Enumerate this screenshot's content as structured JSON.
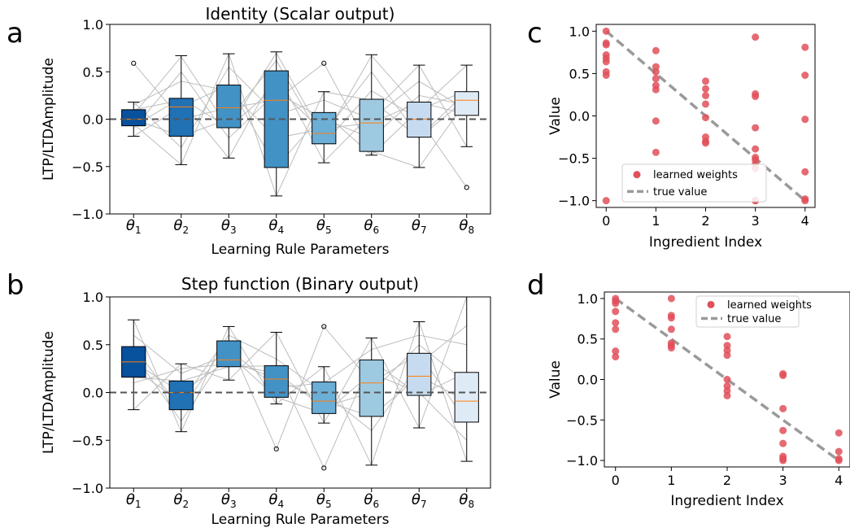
{
  "colors": {
    "box_fills": [
      "#08519c",
      "#2171b5",
      "#4292c6",
      "#4292c6",
      "#6baed6",
      "#9ecae1",
      "#c6dbef",
      "#deebf7"
    ],
    "median": "#ff7f0e",
    "traj_line": "#bdbdbd",
    "zero_line": "#555555",
    "points": "#e0505a",
    "true_line": "#9a9a9a"
  },
  "chart_data": [
    {
      "panel": "a",
      "type": "box",
      "title": "Identity (Scalar output)",
      "xlabel": "Learning Rule Parameters",
      "ylabel": "LTP/LTDAmplitude",
      "ylim": [
        -1.0,
        1.0
      ],
      "yticks": [
        "−1.0",
        "−0.5",
        "0.0",
        "0.5",
        "1.0"
      ],
      "ytick_values": [
        -1.0,
        -0.5,
        0.0,
        0.5,
        1.0
      ],
      "categories": [
        "1",
        "2",
        "3",
        "4",
        "5",
        "6",
        "7",
        "8"
      ],
      "category_symbol": "θ",
      "reference_line": 0.0,
      "boxes": [
        {
          "whislo": -0.18,
          "q1": -0.07,
          "med": 0.0,
          "q3": 0.1,
          "whishi": 0.18,
          "fliers": [
            0.59
          ]
        },
        {
          "whislo": -0.48,
          "q1": -0.18,
          "med": 0.13,
          "q3": 0.22,
          "whishi": 0.67,
          "fliers": []
        },
        {
          "whislo": -0.41,
          "q1": -0.09,
          "med": 0.12,
          "q3": 0.36,
          "whishi": 0.69,
          "fliers": []
        },
        {
          "whislo": -0.81,
          "q1": -0.51,
          "med": 0.2,
          "q3": 0.51,
          "whishi": 0.71,
          "fliers": []
        },
        {
          "whislo": -0.46,
          "q1": -0.26,
          "med": -0.15,
          "q3": 0.07,
          "whishi": 0.29,
          "fliers": [
            0.59
          ]
        },
        {
          "whislo": -0.38,
          "q1": -0.34,
          "med": -0.04,
          "q3": 0.21,
          "whishi": 0.68,
          "fliers": []
        },
        {
          "whislo": -0.51,
          "q1": -0.19,
          "med": 0.0,
          "q3": 0.18,
          "whishi": 0.57,
          "fliers": []
        },
        {
          "whislo": -0.29,
          "q1": 0.04,
          "med": 0.2,
          "q3": 0.29,
          "whishi": 0.57,
          "fliers": [
            -0.72
          ]
        }
      ],
      "trajectories": [
        [
          0.05,
          0.66,
          -0.1,
          0.7,
          -0.2,
          0.67,
          0.1,
          0.3
        ],
        [
          -0.05,
          -0.48,
          0.69,
          -0.81,
          0.29,
          0.2,
          -0.2,
          0.22
        ],
        [
          0.1,
          0.2,
          -0.41,
          0.5,
          -0.45,
          0.06,
          0.57,
          -0.29
        ],
        [
          -0.18,
          0.13,
          0.36,
          -0.51,
          0.07,
          -0.38,
          0.1,
          0.57
        ],
        [
          0.59,
          0.0,
          0.12,
          0.2,
          0.59,
          -0.34,
          -0.51,
          0.2
        ],
        [
          0.0,
          -0.18,
          0.0,
          0.62,
          -0.26,
          0.3,
          0.0,
          -0.72
        ],
        [
          0.15,
          0.4,
          0.3,
          -0.2,
          -0.1,
          -0.04,
          0.18,
          0.05
        ],
        [
          -0.07,
          0.22,
          -0.09,
          0.35,
          -0.15,
          0.5,
          -0.19,
          0.29
        ],
        [
          0.18,
          -0.3,
          0.55,
          0.05,
          0.2,
          0.0,
          0.4,
          0.1
        ],
        [
          -0.1,
          0.5,
          -0.2,
          0.28,
          0.0,
          -0.2,
          0.25,
          0.15
        ]
      ]
    },
    {
      "panel": "b",
      "type": "box",
      "title": "Step function (Binary output)",
      "xlabel": "Learning Rule Parameters",
      "ylabel": "LTP/LTDAmplitude",
      "ylim": [
        -1.0,
        1.0
      ],
      "yticks": [
        "−1.0",
        "−0.5",
        "0.0",
        "0.5",
        "1.0"
      ],
      "ytick_values": [
        -1.0,
        -0.5,
        0.0,
        0.5,
        1.0
      ],
      "categories": [
        "1",
        "2",
        "3",
        "4",
        "5",
        "6",
        "7",
        "8"
      ],
      "category_symbol": "θ",
      "reference_line": 0.0,
      "boxes": [
        {
          "whislo": -0.18,
          "q1": 0.16,
          "med": 0.32,
          "q3": 0.48,
          "whishi": 0.76,
          "fliers": []
        },
        {
          "whislo": -0.41,
          "q1": -0.18,
          "med": 0.0,
          "q3": 0.12,
          "whishi": 0.3,
          "fliers": []
        },
        {
          "whislo": 0.13,
          "q1": 0.27,
          "med": 0.34,
          "q3": 0.54,
          "whishi": 0.69,
          "fliers": []
        },
        {
          "whislo": -0.12,
          "q1": -0.05,
          "med": 0.14,
          "q3": 0.28,
          "whishi": 0.63,
          "fliers": [
            -0.59
          ]
        },
        {
          "whislo": -0.32,
          "q1": -0.22,
          "med": -0.09,
          "q3": 0.11,
          "whishi": 0.27,
          "fliers": [
            0.69,
            -0.79
          ]
        },
        {
          "whislo": -0.76,
          "q1": -0.25,
          "med": 0.1,
          "q3": 0.34,
          "whishi": 0.57,
          "fliers": []
        },
        {
          "whislo": -0.37,
          "q1": -0.03,
          "med": 0.17,
          "q3": 0.41,
          "whishi": 0.74,
          "fliers": []
        },
        {
          "whislo": -0.72,
          "q1": -0.31,
          "med": -0.09,
          "q3": 0.21,
          "whishi": 1.0,
          "fliers": []
        }
      ],
      "trajectories": [
        [
          0.76,
          -0.41,
          0.69,
          -0.12,
          0.27,
          -0.76,
          0.74,
          -0.72
        ],
        [
          -0.18,
          0.3,
          0.13,
          0.63,
          -0.32,
          0.57,
          -0.37,
          1.0
        ],
        [
          0.48,
          -0.18,
          0.54,
          -0.59,
          0.69,
          0.1,
          0.41,
          -0.31
        ],
        [
          0.16,
          0.12,
          0.27,
          0.28,
          -0.79,
          0.34,
          -0.03,
          0.21
        ],
        [
          0.32,
          0.0,
          0.34,
          0.14,
          -0.09,
          -0.25,
          0.17,
          -0.09
        ],
        [
          0.4,
          -0.3,
          0.45,
          0.05,
          0.1,
          0.45,
          0.6,
          0.5
        ],
        [
          0.6,
          0.2,
          0.4,
          -0.05,
          -0.22,
          0.2,
          0.0,
          -0.5
        ],
        [
          0.25,
          -0.1,
          0.6,
          0.35,
          0.0,
          -0.4,
          0.3,
          0.7
        ],
        [
          0.1,
          0.25,
          0.3,
          0.2,
          -0.15,
          0.0,
          0.5,
          0.1
        ]
      ]
    },
    {
      "panel": "c",
      "type": "scatter",
      "xlabel": "Ingredient Index",
      "ylabel": "Value",
      "xlim": [
        -0.2,
        4.2
      ],
      "ylim": [
        -1.08,
        1.08
      ],
      "xticks": [
        "0",
        "1",
        "2",
        "3",
        "4"
      ],
      "xtick_values": [
        0,
        1,
        2,
        3,
        4
      ],
      "yticks": [
        "−1.0",
        "−0.5",
        "0.0",
        "0.5",
        "1.0"
      ],
      "ytick_values": [
        -1.0,
        -0.5,
        0.0,
        0.5,
        1.0
      ],
      "legend": {
        "position": "lower-left",
        "entries": [
          "learned weights",
          "true value"
        ]
      },
      "true_value": {
        "x": [
          0,
          4
        ],
        "y": [
          1.0,
          -1.0
        ]
      },
      "points": [
        [
          0,
          1.0
        ],
        [
          0,
          0.86
        ],
        [
          0,
          0.84
        ],
        [
          0,
          0.72
        ],
        [
          0,
          0.68
        ],
        [
          0,
          0.64
        ],
        [
          0,
          0.52
        ],
        [
          0,
          0.48
        ],
        [
          0,
          -1.0
        ],
        [
          1,
          0.77
        ],
        [
          1,
          0.58
        ],
        [
          1,
          0.52
        ],
        [
          1,
          0.44
        ],
        [
          1,
          0.36
        ],
        [
          1,
          0.31
        ],
        [
          1,
          -0.06
        ],
        [
          1,
          -0.43
        ],
        [
          2,
          0.41
        ],
        [
          2,
          0.32
        ],
        [
          2,
          0.24
        ],
        [
          2,
          0.14
        ],
        [
          2,
          -0.02
        ],
        [
          2,
          -0.25
        ],
        [
          2,
          -0.3
        ],
        [
          2,
          -0.32
        ],
        [
          3,
          0.93
        ],
        [
          3,
          0.26
        ],
        [
          3,
          0.23
        ],
        [
          3,
          -0.14
        ],
        [
          3,
          -0.39
        ],
        [
          3,
          -0.49
        ],
        [
          3,
          -0.52
        ],
        [
          3,
          -0.57
        ],
        [
          3,
          -0.62
        ],
        [
          3,
          -1.0
        ],
        [
          3,
          -1.0
        ],
        [
          4,
          0.81
        ],
        [
          4,
          0.48
        ],
        [
          4,
          -0.04
        ],
        [
          4,
          -0.66
        ],
        [
          4,
          -0.98
        ],
        [
          4,
          -1.0
        ]
      ]
    },
    {
      "panel": "d",
      "type": "scatter",
      "xlabel": "Ingredient Index",
      "ylabel": "Value",
      "xlim": [
        -0.2,
        4.2
      ],
      "ylim": [
        -1.08,
        1.08
      ],
      "xticks": [
        "0",
        "1",
        "2",
        "3",
        "4"
      ],
      "xtick_values": [
        0,
        1,
        2,
        3,
        4
      ],
      "yticks": [
        "−1.0",
        "−0.5",
        "0.0",
        "0.5",
        "1.0"
      ],
      "ytick_values": [
        -1.0,
        -0.5,
        0.0,
        0.5,
        1.0
      ],
      "legend": {
        "position": "upper-right",
        "entries": [
          "learned weights",
          "true value"
        ]
      },
      "true_value": {
        "x": [
          0,
          4
        ],
        "y": [
          1.0,
          -1.0
        ]
      },
      "points": [
        [
          0,
          1.0
        ],
        [
          0,
          0.97
        ],
        [
          0,
          0.94
        ],
        [
          0,
          0.84
        ],
        [
          0,
          0.7
        ],
        [
          0,
          0.62
        ],
        [
          0,
          0.35
        ],
        [
          0,
          0.28
        ],
        [
          1,
          1.0
        ],
        [
          1,
          0.79
        ],
        [
          1,
          0.76
        ],
        [
          1,
          0.62
        ],
        [
          1,
          0.45
        ],
        [
          1,
          0.39
        ],
        [
          1,
          0.42
        ],
        [
          2,
          0.53
        ],
        [
          2,
          0.42
        ],
        [
          2,
          0.36
        ],
        [
          2,
          0.3
        ],
        [
          2,
          0.0
        ],
        [
          2,
          -0.08
        ],
        [
          2,
          -0.14
        ],
        [
          2,
          -0.2
        ],
        [
          3,
          0.07
        ],
        [
          3,
          0.05
        ],
        [
          3,
          -0.36
        ],
        [
          3,
          -0.63
        ],
        [
          3,
          -0.79
        ],
        [
          3,
          -0.95
        ],
        [
          3,
          -0.98
        ],
        [
          3,
          -1.0
        ],
        [
          4,
          -0.66
        ],
        [
          4,
          -0.89
        ],
        [
          4,
          -0.98
        ],
        [
          4,
          -1.0
        ]
      ]
    }
  ]
}
